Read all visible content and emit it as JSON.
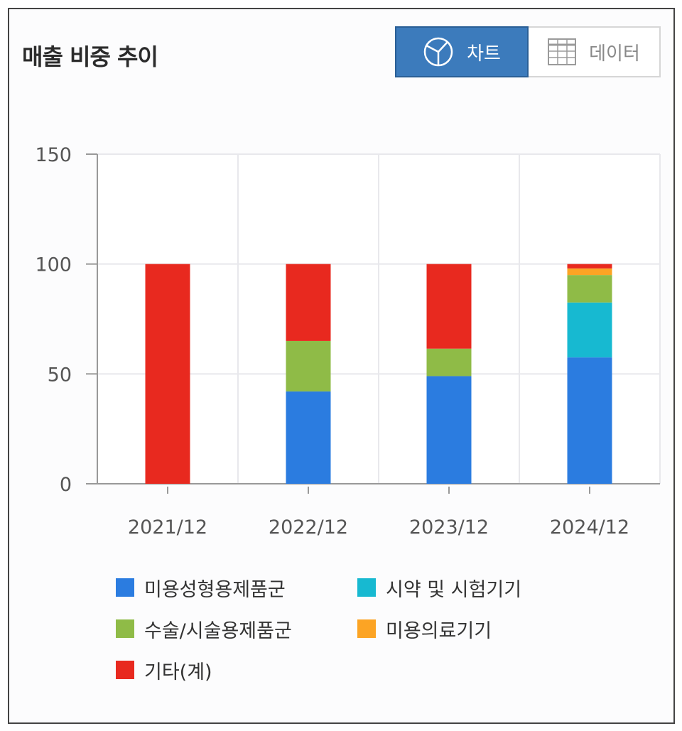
{
  "header": {
    "title": "매출 비중 추이"
  },
  "view_toggle": {
    "chart_label": "차트",
    "data_label": "데이터",
    "chart_icon": "pie-chart-icon",
    "data_icon": "table-grid-icon"
  },
  "colors": {
    "toggle_active": "#3c7bbc",
    "grid": "#e8e8ec",
    "axis": "#999999"
  },
  "chart_data": {
    "type": "bar",
    "stacked": true,
    "categories": [
      "2021/12",
      "2022/12",
      "2023/12",
      "2024/12"
    ],
    "ylim": [
      0,
      150
    ],
    "yticks": [
      0,
      50,
      100,
      150
    ],
    "grid": true,
    "legend_position": "bottom",
    "title": "",
    "xlabel": "",
    "ylabel": "",
    "series": [
      {
        "name": "미용성형용제품군",
        "color": "#2b7ce0",
        "values": [
          0,
          42,
          49,
          57.5
        ]
      },
      {
        "name": "시약 및 시험기기",
        "color": "#17b9d1",
        "values": [
          0,
          0,
          0,
          25
        ]
      },
      {
        "name": "수술/시술용제품군",
        "color": "#8fbb47",
        "values": [
          0,
          23,
          12.5,
          12.5
        ]
      },
      {
        "name": "미용의료기기",
        "color": "#fca424",
        "values": [
          0,
          0,
          0,
          3
        ]
      },
      {
        "name": "기타(계)",
        "color": "#e8291f",
        "values": [
          100,
          35,
          38.5,
          2
        ]
      }
    ]
  }
}
